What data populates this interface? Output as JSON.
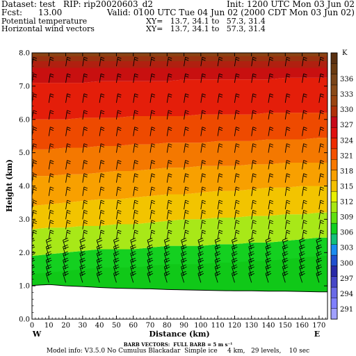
{
  "header": {
    "dataset_line": "Dataset: test   RIP: rip20020603_d2",
    "init_line": "Init: 1200 UTC Mon 03 Jun 02",
    "fcst_line": "Fcst:      13.00",
    "valid_line": "Valid: 0100 UTC Tue 04 Jun 02 (2000 CDT Mon 03 Jun 02)",
    "field1_label": "Potential temperature",
    "field1_xy": "XY=   13.7, 34.1 to   57.3, 31.4",
    "field2_label": "Horizontal wind vectors",
    "field2_xy": "XY=   13.7, 34.1 to   57.3, 31.4"
  },
  "footer": {
    "barb_note": "BARB VECTORS:  FULL BARB = 5 m s⁻¹",
    "model_info": "Model info: V3.5.0 No Cumulus Blackadar  Simple ice     4 km,   29 levels,    10 sec"
  },
  "colors": {
    "terrain": "#ffffff",
    "frame": "#000000"
  },
  "chart_data": {
    "type": "heatmap",
    "title": "",
    "xlabel": "Distance (km)",
    "ylabel": "Height (km)",
    "xlim": [
      0,
      175
    ],
    "ylim": [
      0,
      8.0
    ],
    "x_ticks": [
      0,
      10,
      20,
      30,
      40,
      50,
      60,
      70,
      80,
      90,
      100,
      110,
      120,
      130,
      140,
      150,
      160,
      170
    ],
    "y_ticks": [
      "0.0",
      "1.0",
      "2.0",
      "3.0",
      "4.0",
      "5.0",
      "6.0",
      "7.0",
      "8.0"
    ],
    "x_end_labels": {
      "left": "W",
      "right": "E"
    },
    "colorbar": {
      "unit": "K",
      "labels": [
        291,
        294,
        297,
        300,
        303,
        306,
        309,
        312,
        315,
        318,
        321,
        324,
        327,
        330,
        333,
        336
      ],
      "colors": [
        "#a0a0ff",
        "#8080ff",
        "#6a6ae8",
        "#4646c8",
        "#2a2aa8",
        "#2050d0",
        "#1a8cf0",
        "#12c07a",
        "#10d020",
        "#60e010",
        "#a8e810",
        "#e8f000",
        "#f4c000",
        "#f8a000",
        "#f87800",
        "#f45000",
        "#ee2a00",
        "#e01010",
        "#c80818",
        "#b03008",
        "#9a4410",
        "#8a4a18",
        "#7a4418",
        "#6a3a10",
        "#5a3010"
      ]
    },
    "terrain_height_km": [
      1.01,
      1.04,
      1.0,
      0.98,
      0.95,
      0.93,
      0.92,
      0.91,
      0.89,
      0.88,
      0.87,
      0.86,
      0.85,
      0.85,
      0.84,
      0.84,
      0.83,
      0.82
    ],
    "theta_layers": [
      {
        "theta": 309,
        "heights_km": [
          1.9,
          1.95,
          2.0,
          2.05,
          2.1,
          2.1,
          2.1,
          2.15,
          2.2,
          2.2,
          2.2,
          2.25,
          2.25,
          2.3,
          2.3,
          2.35,
          2.4,
          2.45
        ]
      },
      {
        "theta": 312,
        "heights_km": [
          2.7,
          2.75,
          2.75,
          2.8,
          2.8,
          2.85,
          2.85,
          2.9,
          2.95,
          3.0,
          3.0,
          3.05,
          3.05,
          3.1,
          3.1,
          3.15,
          3.15,
          3.2
        ]
      },
      {
        "theta": 315,
        "heights_km": [
          3.4,
          3.45,
          3.5,
          3.55,
          3.6,
          3.6,
          3.65,
          3.7,
          3.75,
          3.75,
          3.8,
          3.85,
          3.85,
          3.9,
          3.95,
          3.95,
          4.0,
          4.0
        ]
      },
      {
        "theta": 318,
        "heights_km": [
          4.3,
          4.3,
          4.35,
          4.35,
          4.4,
          4.45,
          4.45,
          4.5,
          4.55,
          4.55,
          4.6,
          4.6,
          4.6,
          4.65,
          4.65,
          4.7,
          4.7,
          4.7
        ]
      },
      {
        "theta": 321,
        "heights_km": [
          5.1,
          5.1,
          5.15,
          5.15,
          5.2,
          5.2,
          5.25,
          5.25,
          5.3,
          5.3,
          5.3,
          5.35,
          5.35,
          5.35,
          5.4,
          5.4,
          5.4,
          5.45
        ]
      },
      {
        "theta": 324,
        "heights_km": [
          6.0,
          6.0,
          6.0,
          6.05,
          6.05,
          6.05,
          6.1,
          6.1,
          6.1,
          6.1,
          6.15,
          6.15,
          6.15,
          6.15,
          6.2,
          6.2,
          6.2,
          6.2
        ]
      },
      {
        "theta": 327,
        "heights_km": [
          7.1,
          7.1,
          7.1,
          7.1,
          7.15,
          7.15,
          7.15,
          7.15,
          7.15,
          7.2,
          7.2,
          7.2,
          7.2,
          7.2,
          7.2,
          7.25,
          7.25,
          7.25
        ]
      }
    ],
    "wind_barb_columns_km": [
      0,
      10,
      20,
      30,
      40,
      50,
      60,
      70,
      80,
      90,
      100,
      110,
      120,
      130,
      140,
      150,
      160,
      170
    ],
    "wind_barb_levels_km": [
      1.1,
      1.3,
      1.5,
      1.7,
      1.9,
      2.1,
      2.4,
      2.7,
      3.0,
      3.3,
      3.7,
      4.1,
      4.5,
      5.0,
      5.5,
      6.0,
      6.5,
      7.1,
      7.6
    ]
  }
}
